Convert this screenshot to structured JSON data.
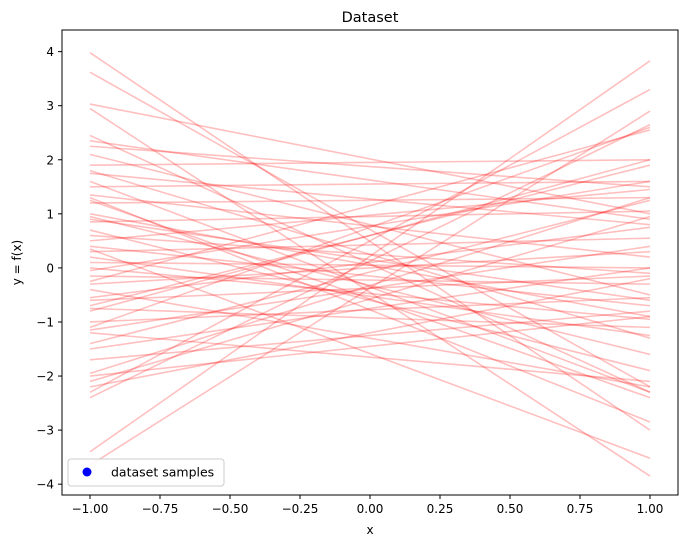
{
  "chart_data": {
    "type": "line",
    "title": "Dataset",
    "xlabel": "x",
    "ylabel": "y = f(x)",
    "xlim": [
      -1.1,
      1.1
    ],
    "ylim": [
      -4.2,
      4.4
    ],
    "xticks": [
      -1.0,
      -0.75,
      -0.5,
      -0.25,
      0.0,
      0.25,
      0.5,
      0.75,
      1.0
    ],
    "xtick_labels": [
      "−1.00",
      "−0.75",
      "−0.50",
      "−0.25",
      "0.00",
      "0.25",
      "0.50",
      "0.75",
      "1.00"
    ],
    "yticks": [
      -4,
      -3,
      -2,
      -1,
      0,
      1,
      2,
      3,
      4
    ],
    "ytick_labels": [
      "−4",
      "−3",
      "−2",
      "−1",
      "0",
      "1",
      "2",
      "3",
      "4"
    ],
    "grid": false,
    "legend": {
      "position": "lower-left",
      "entries": [
        {
          "label": "dataset samples",
          "marker": "circle",
          "color": "#0000ff"
        }
      ]
    },
    "line_color": "#ff0000",
    "line_alpha": 0.25,
    "x": [
      -1.0,
      1.0
    ],
    "series": [
      {
        "values": [
          3.98,
          -3.0
        ]
      },
      {
        "values": [
          3.62,
          -2.2
        ]
      },
      {
        "values": [
          3.03,
          1.0
        ]
      },
      {
        "values": [
          2.45,
          -2.3
        ]
      },
      {
        "values": [
          2.35,
          0.9
        ]
      },
      {
        "values": [
          2.25,
          1.5
        ]
      },
      {
        "values": [
          2.1,
          -0.5
        ]
      },
      {
        "values": [
          1.9,
          2.0
        ]
      },
      {
        "values": [
          1.8,
          -1.3
        ]
      },
      {
        "values": [
          1.75,
          0.8
        ]
      },
      {
        "values": [
          1.6,
          -2.3
        ]
      },
      {
        "values": [
          1.5,
          1.6
        ]
      },
      {
        "values": [
          1.35,
          0.2
        ]
      },
      {
        "values": [
          1.25,
          -2.4
        ]
      },
      {
        "values": [
          1.2,
          1.3
        ]
      },
      {
        "values": [
          1.0,
          -0.9
        ]
      },
      {
        "values": [
          0.9,
          -0.6
        ]
      },
      {
        "values": [
          0.85,
          1.05
        ]
      },
      {
        "values": [
          0.7,
          -1.9
        ]
      },
      {
        "values": [
          0.6,
          -0.1
        ]
      },
      {
        "values": [
          0.5,
          1.45
        ]
      },
      {
        "values": [
          0.4,
          -0.7
        ]
      },
      {
        "values": [
          0.3,
          0.55
        ]
      },
      {
        "values": [
          0.2,
          -1.25
        ]
      },
      {
        "values": [
          0.1,
          0.0
        ]
      },
      {
        "values": [
          0.0,
          -0.95
        ]
      },
      {
        "values": [
          -0.05,
          1.6
        ]
      },
      {
        "values": [
          -0.15,
          -0.3
        ]
      },
      {
        "values": [
          -0.3,
          0.3
        ]
      },
      {
        "values": [
          -0.4,
          -2.2
        ]
      },
      {
        "values": [
          -0.55,
          0.75
        ]
      },
      {
        "values": [
          -0.6,
          -0.15
        ]
      },
      {
        "values": [
          -0.75,
          -1.1
        ]
      },
      {
        "values": [
          -0.8,
          2.0
        ]
      },
      {
        "values": [
          -1.0,
          -0.55
        ]
      },
      {
        "values": [
          -1.1,
          2.6
        ]
      },
      {
        "values": [
          -1.15,
          0.4
        ]
      },
      {
        "values": [
          -1.4,
          1.25
        ]
      },
      {
        "values": [
          -1.5,
          0.0
        ]
      },
      {
        "values": [
          -1.7,
          -0.8
        ]
      },
      {
        "values": [
          -1.95,
          1.3
        ]
      },
      {
        "values": [
          -2.1,
          0.95
        ]
      },
      {
        "values": [
          -2.2,
          -0.2
        ]
      },
      {
        "values": [
          -2.3,
          3.3
        ]
      },
      {
        "values": [
          -2.4,
          2.65
        ]
      },
      {
        "values": [
          -3.4,
          3.83
        ]
      },
      {
        "values": [
          -3.65,
          2.9
        ]
      },
      {
        "values": [
          2.95,
          -3.85
        ]
      },
      {
        "values": [
          1.3,
          -2.85
        ]
      },
      {
        "values": [
          0.35,
          -3.52
        ]
      },
      {
        "values": [
          -1.2,
          -2.1
        ]
      },
      {
        "values": [
          -0.7,
          1.9
        ]
      },
      {
        "values": [
          -2.0,
          -0.9
        ]
      },
      {
        "values": [
          0.95,
          -1.6
        ]
      },
      {
        "values": [
          -0.25,
          2.55
        ]
      }
    ]
  }
}
